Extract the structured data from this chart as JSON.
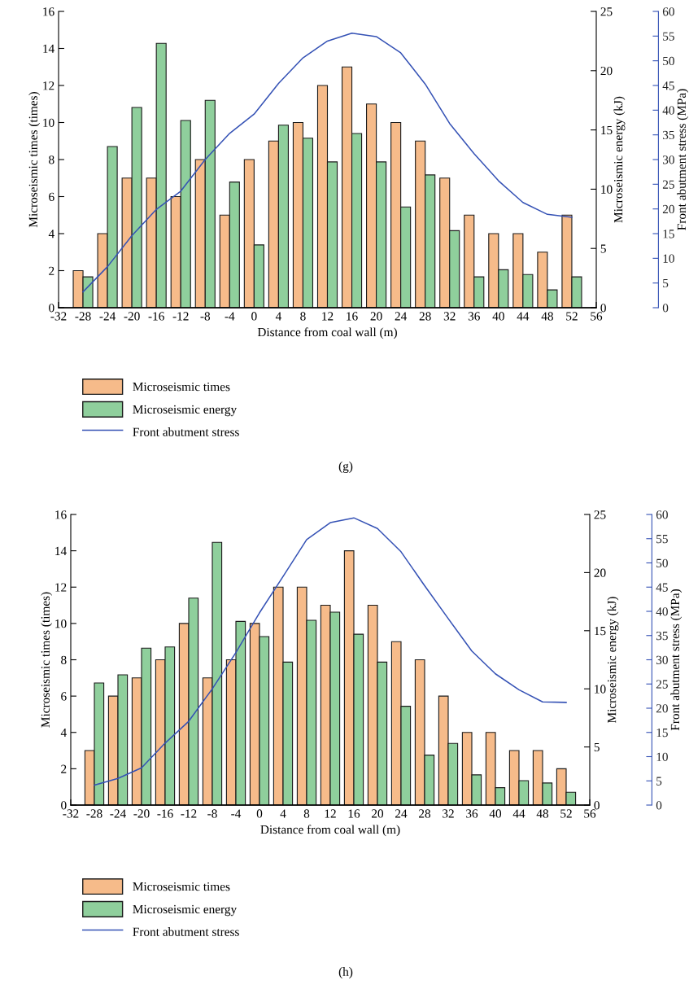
{
  "chart_data": [
    {
      "type": "bar",
      "xlabel": "Distance from coal wall (m)",
      "ylabel": "Microseismic times (times)",
      "y2label": "Microseismic energy (kJ)",
      "y3label": "Front abutment stress (MPa)",
      "x": [
        -28,
        -24,
        -20,
        -16,
        -12,
        -8,
        -4,
        0,
        4,
        8,
        12,
        16,
        20,
        24,
        28,
        32,
        36,
        40,
        44,
        48,
        52
      ],
      "series": [
        {
          "name": "Microseismic times",
          "axis": "y",
          "color": "#f6bb8a",
          "values": [
            2,
            4,
            7,
            7,
            6,
            8,
            5,
            8,
            9,
            10,
            12,
            13,
            11,
            10,
            9,
            7,
            5,
            4,
            4,
            3,
            5
          ]
        },
        {
          "name": "Microseismic energy",
          "axis": "y2",
          "color": "#8fcf9c",
          "values": [
            2.6,
            13.6,
            16.9,
            22.3,
            15.8,
            17.5,
            10.6,
            5.3,
            15.4,
            14.3,
            12.3,
            14.7,
            12.3,
            8.5,
            11.2,
            6.5,
            2.6,
            3.2,
            2.8,
            1.5,
            2.6
          ]
        },
        {
          "name": "Front abutment stress",
          "type": "line",
          "axis": "y3",
          "color": "#3552b5",
          "values": [
            3.2,
            8.3,
            14.6,
            19.9,
            23.6,
            30.0,
            35.3,
            39.2,
            45.4,
            50.6,
            54.0,
            55.6,
            54.9,
            51.6,
            45.3,
            37.3,
            31.2,
            25.7,
            21.3,
            18.9,
            18.3
          ]
        }
      ],
      "xlim": [
        -32,
        56
      ],
      "xticks": [
        -32,
        -28,
        -24,
        -20,
        -16,
        -12,
        -8,
        -4,
        0,
        4,
        8,
        12,
        16,
        20,
        24,
        28,
        32,
        36,
        40,
        44,
        48,
        52,
        56
      ],
      "ylim": [
        0,
        16
      ],
      "yticks": [
        0,
        2,
        4,
        6,
        8,
        10,
        12,
        14,
        16
      ],
      "y2lim": [
        0,
        25
      ],
      "y2ticks": [
        0,
        5,
        10,
        15,
        20,
        25
      ],
      "y3lim": [
        0,
        60
      ],
      "y3ticks": [
        0,
        5,
        10,
        15,
        20,
        25,
        30,
        35,
        40,
        45,
        50,
        55,
        60
      ],
      "legend": "bottom",
      "marker": "none",
      "line_style": "solid",
      "annotations": [
        "(g)"
      ]
    },
    {
      "type": "bar",
      "xlabel": "Distance from coal wall (m)",
      "ylabel": "Microseismic times (times)",
      "y2label": "Microseismic energy (kJ)",
      "y3label": "Front abutment stress (MPa)",
      "x": [
        -28,
        -24,
        -20,
        -16,
        -12,
        -8,
        -4,
        0,
        4,
        8,
        12,
        16,
        20,
        24,
        28,
        32,
        36,
        40,
        44,
        48,
        52
      ],
      "series": [
        {
          "name": "Microseismic times",
          "axis": "y",
          "color": "#f6bb8a",
          "values": [
            3,
            6,
            7,
            8,
            10,
            7,
            8,
            10,
            12,
            12,
            11,
            14,
            11,
            9,
            8,
            6,
            4,
            4,
            3,
            3,
            2
          ]
        },
        {
          "name": "Microseismic energy",
          "axis": "y2",
          "color": "#8fcf9c",
          "values": [
            10.5,
            11.2,
            13.5,
            13.6,
            17.8,
            22.6,
            15.8,
            14.5,
            12.3,
            15.9,
            16.6,
            14.7,
            12.3,
            8.5,
            4.3,
            5.3,
            2.6,
            1.5,
            2.1,
            1.9,
            1.1
          ]
        },
        {
          "name": "Front abutment stress",
          "type": "line",
          "axis": "y3",
          "color": "#3552b5",
          "values": [
            4.1,
            5.5,
            7.7,
            12.8,
            17.3,
            24.0,
            31.5,
            39.7,
            47.2,
            54.8,
            58.3,
            59.3,
            57.1,
            52.3,
            45.3,
            38.5,
            31.8,
            27.1,
            23.8,
            21.3,
            21.2
          ]
        }
      ],
      "xlim": [
        -32,
        56
      ],
      "xticks": [
        -32,
        -28,
        -24,
        -20,
        -16,
        -12,
        -8,
        -4,
        0,
        4,
        8,
        12,
        16,
        20,
        24,
        28,
        32,
        36,
        40,
        44,
        48,
        52,
        56
      ],
      "ylim": [
        0,
        16
      ],
      "yticks": [
        0,
        2,
        4,
        6,
        8,
        10,
        12,
        14,
        16
      ],
      "y2lim": [
        0,
        25
      ],
      "y2ticks": [
        0,
        5,
        10,
        15,
        20,
        25
      ],
      "y3lim": [
        0,
        60
      ],
      "y3ticks": [
        0,
        5,
        10,
        15,
        20,
        25,
        30,
        35,
        40,
        45,
        50,
        55,
        60
      ],
      "legend": "bottom",
      "marker": "none",
      "line_style": "solid",
      "annotations": [
        "(h)"
      ]
    }
  ]
}
